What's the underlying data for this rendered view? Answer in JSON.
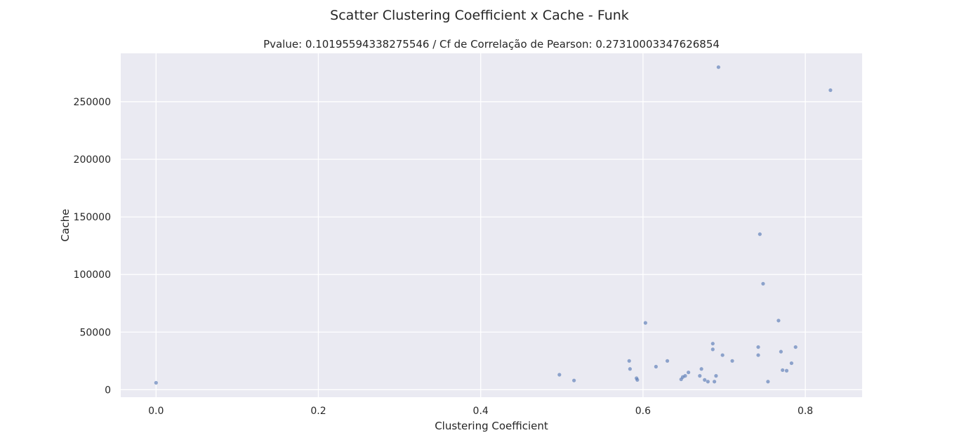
{
  "chart_data": {
    "type": "scatter",
    "title": "Scatter Clustering Coefficient x Cache - Funk",
    "subtitle": "Pvalue: 0.10195594338275546 / Cf de Correlação de Pearson: 0.27310003347626854",
    "xlabel": "Clustering Coefficient",
    "ylabel": "Cache",
    "xlim": [
      -0.0435,
      0.87
    ],
    "ylim": [
      -6500,
      292000
    ],
    "x_ticks": [
      0.0,
      0.2,
      0.4,
      0.6,
      0.8
    ],
    "x_tick_labels": [
      "0.0",
      "0.2",
      "0.4",
      "0.6",
      "0.8"
    ],
    "y_ticks": [
      0,
      50000,
      100000,
      150000,
      200000,
      250000
    ],
    "y_tick_labels": [
      "0",
      "50000",
      "100000",
      "150000",
      "200000",
      "250000"
    ],
    "grid": true,
    "background_color": "#eaeaf2",
    "point_color": "#4c72b0",
    "points": [
      {
        "x": 0.0,
        "y": 6000
      },
      {
        "x": 0.497,
        "y": 13000
      },
      {
        "x": 0.515,
        "y": 8000
      },
      {
        "x": 0.583,
        "y": 25000
      },
      {
        "x": 0.584,
        "y": 18000
      },
      {
        "x": 0.592,
        "y": 10000
      },
      {
        "x": 0.593,
        "y": 8500
      },
      {
        "x": 0.603,
        "y": 58000
      },
      {
        "x": 0.616,
        "y": 20000
      },
      {
        "x": 0.63,
        "y": 25000
      },
      {
        "x": 0.647,
        "y": 9000
      },
      {
        "x": 0.649,
        "y": 11000
      },
      {
        "x": 0.652,
        "y": 12000
      },
      {
        "x": 0.656,
        "y": 15000
      },
      {
        "x": 0.67,
        "y": 12000
      },
      {
        "x": 0.672,
        "y": 18000
      },
      {
        "x": 0.676,
        "y": 8500
      },
      {
        "x": 0.68,
        "y": 7000
      },
      {
        "x": 0.686,
        "y": 40000
      },
      {
        "x": 0.686,
        "y": 35000
      },
      {
        "x": 0.688,
        "y": 7000
      },
      {
        "x": 0.69,
        "y": 12000
      },
      {
        "x": 0.693,
        "y": 280000
      },
      {
        "x": 0.698,
        "y": 30000
      },
      {
        "x": 0.71,
        "y": 25000
      },
      {
        "x": 0.742,
        "y": 37000
      },
      {
        "x": 0.742,
        "y": 30000
      },
      {
        "x": 0.744,
        "y": 135000
      },
      {
        "x": 0.748,
        "y": 92000
      },
      {
        "x": 0.754,
        "y": 7000
      },
      {
        "x": 0.767,
        "y": 60000
      },
      {
        "x": 0.77,
        "y": 33000
      },
      {
        "x": 0.772,
        "y": 17000
      },
      {
        "x": 0.777,
        "y": 16500
      },
      {
        "x": 0.783,
        "y": 23000
      },
      {
        "x": 0.788,
        "y": 37000
      },
      {
        "x": 0.831,
        "y": 260000
      }
    ]
  }
}
